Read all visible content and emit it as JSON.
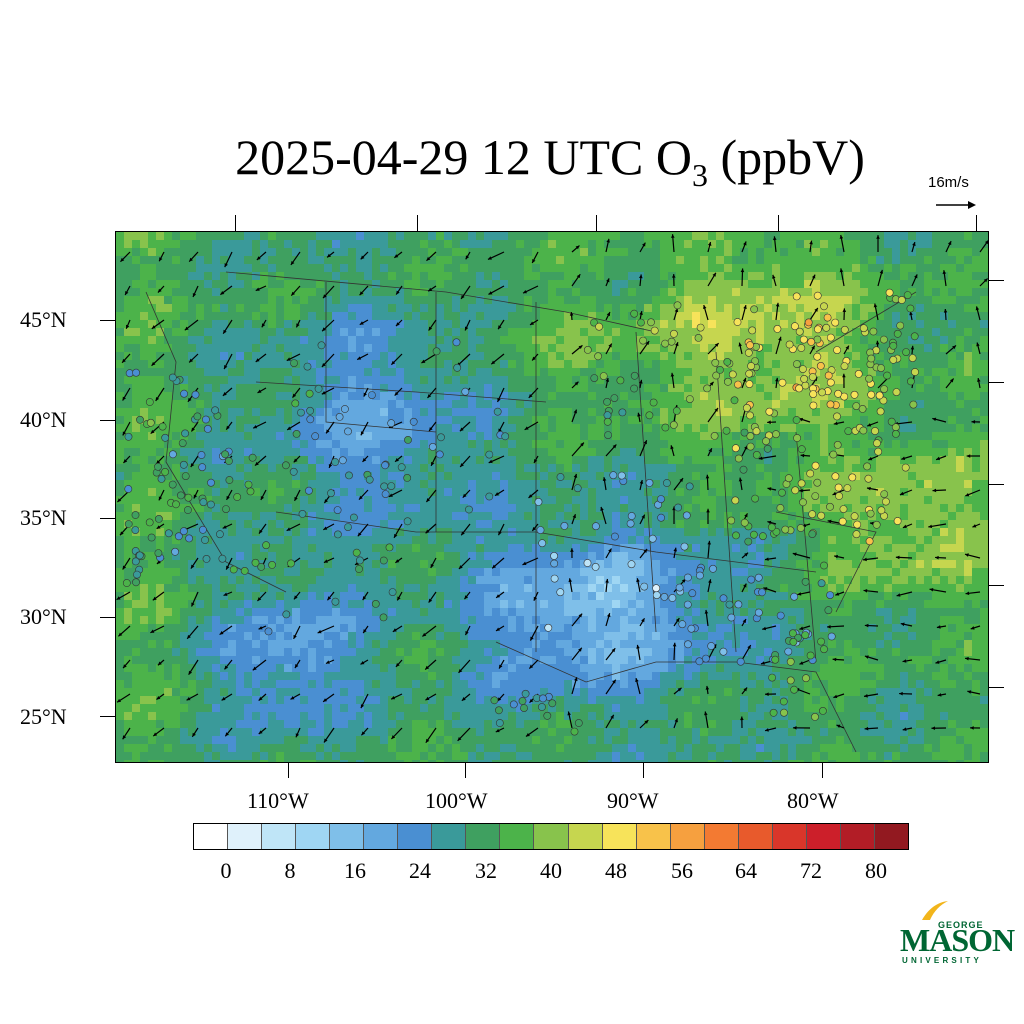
{
  "title": {
    "main": "2025-04-29 12 UTC O",
    "subscript": "3",
    "unit": " (ppbV)"
  },
  "wind_reference": {
    "label": "16m/s"
  },
  "map": {
    "latitude_labels": [
      "45°N",
      "40°N",
      "35°N",
      "30°N",
      "25°N"
    ],
    "longitude_labels": [
      "110°W",
      "100°W",
      "90°W",
      "80°W"
    ],
    "description_icons": {
      "station": "monitoring-station-marker",
      "wind": "wind-vector-arrow"
    }
  },
  "colorbar": {
    "labels": [
      "0",
      "8",
      "16",
      "24",
      "32",
      "40",
      "48",
      "56",
      "64",
      "72",
      "80"
    ],
    "colors": [
      "#ffffff",
      "#dff1fb",
      "#bfe5f7",
      "#9fd6f3",
      "#7fbfe9",
      "#63a8df",
      "#4a8fd2",
      "#3a9a9a",
      "#3fa060",
      "#4cb34a",
      "#88c34c",
      "#c6d64f",
      "#f7e35a",
      "#f8c24a",
      "#f6a03f",
      "#f37a32",
      "#e85a2c",
      "#d9362a",
      "#cc1f2a",
      "#b21d26",
      "#921920"
    ]
  },
  "logo": {
    "top": "GEORGE",
    "middle": "MASON",
    "bottom": "UNIVERSITY",
    "brand_color": "#006633",
    "accent_color": "#f2b51b"
  }
}
